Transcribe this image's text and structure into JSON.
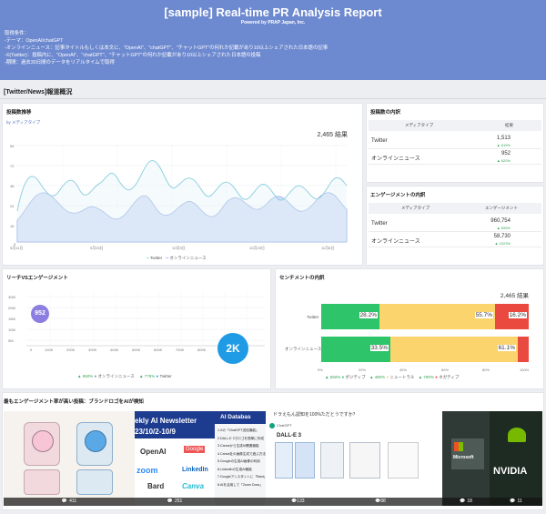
{
  "header": {
    "title": "[sample] Real-time PR Analysis Report",
    "subtitle": "Powered by PRAP Japan, Inc.",
    "conditions": [
      "取得条件：",
      "-テーマ：OpenAI/chatGPT",
      "-オンラインニュース：記事タイトルもしくは本文に、\"OpenAI\"、\"chatGPT\"、\"チャットGPT\"の何れか記載があり10以上シェアされた日本語の記事",
      "-X(Twitter)：投稿内に、\"OpenAI\"、\"chatGPT\"、\"チャットGPT\"の何れか記載があり10以上シェアされた日本語の投稿",
      "-期間：過去30日間のデータをリアルタイムで取得"
    ]
  },
  "section_title": "[Twitter/News]報道概況",
  "post_count": {
    "title": "投稿数推移",
    "filter": "by メディアタイプ",
    "total": "2,465 結果",
    "legend": [
      "Twitter",
      "オンラインニュース"
    ],
    "colors": {
      "twitter": "#7ec8dc",
      "news": "#8fa6e4"
    }
  },
  "breakdown_posts": {
    "title": "投稿数の内訳",
    "headers": [
      "メディアタイプ",
      "結果"
    ],
    "rows": [
      {
        "label": "Twitter",
        "value": "1,513",
        "change": "▲ 615%"
      },
      {
        "label": "オンラインニュース",
        "value": "952",
        "change": "▲ 620%"
      }
    ]
  },
  "breakdown_engagement": {
    "title": "エンゲージメントの内訳",
    "headers": [
      "メディアタイプ",
      "エンゲージメント"
    ],
    "rows": [
      {
        "label": "Twitter",
        "value": "960,754",
        "change": "▲ 695%"
      },
      {
        "label": "オンラインニュース",
        "value": "58,730",
        "change": "▲ 1023%"
      }
    ]
  },
  "reach_engagement": {
    "title": "リーチVSエンゲージメント",
    "bubble_news": "952",
    "bubble_twitter": "2K",
    "legend": [
      {
        "pct": "▲ 650%",
        "name": "オンラインニュース"
      },
      {
        "pct": "▲ 779%",
        "name": "Twitter"
      }
    ]
  },
  "sentiment": {
    "title": "センチメントの内訳",
    "total": "2,465 結果",
    "legend": [
      {
        "pct": "▲ 550%",
        "name": "ポジティブ",
        "color": "#2ec46a"
      },
      {
        "pct": "▲ 480%",
        "name": "ニュートラル",
        "color": "#fbd46d"
      },
      {
        "pct": "▲ 790%",
        "name": "ネガティブ",
        "color": "#e9493f"
      }
    ]
  },
  "bottom": {
    "title": "最もエンゲージメント率が高い投稿：ブランドロゴをAIが検知",
    "thumbs": [
      {
        "count": "411"
      },
      {
        "count": "251"
      },
      {
        "count": "133"
      },
      {
        "count": "88"
      },
      {
        "count": "18"
      },
      {
        "count": "11"
      }
    ],
    "thumb2_heading": "ekly AI Newsletter",
    "thumb2_date": "23/10/2-10/9",
    "thumb2_logos": [
      "OpenAI",
      "Google",
      "zoom",
      "LinkedIn",
      "Bard",
      "Canva"
    ],
    "thumb3_heading": "AI Databas",
    "thumb3_lines": [
      "1.Xの「ChatGPT送信機能」",
      "2.DALL-E 3でロゴを簡単に作成",
      "3.Canvaから生成AI関連機能",
      "4.Canva社の画像生成で遊ぶ方法",
      "5.Googleの生成AI画像の利用",
      "6.Linkedinの生成AI機能",
      "7.Googleアシスタントに「Bard」",
      "8.AIを活用して「Zoom Docs」"
    ],
    "thumb4_question": "ドラえもん認知を100%ただとうですか？",
    "thumb4_account": "ChatGPT",
    "thumb4_caption": "DALL-E 3",
    "thumb5_text": "Microsoft",
    "thumb6_text": "NVIDIA"
  }
}
